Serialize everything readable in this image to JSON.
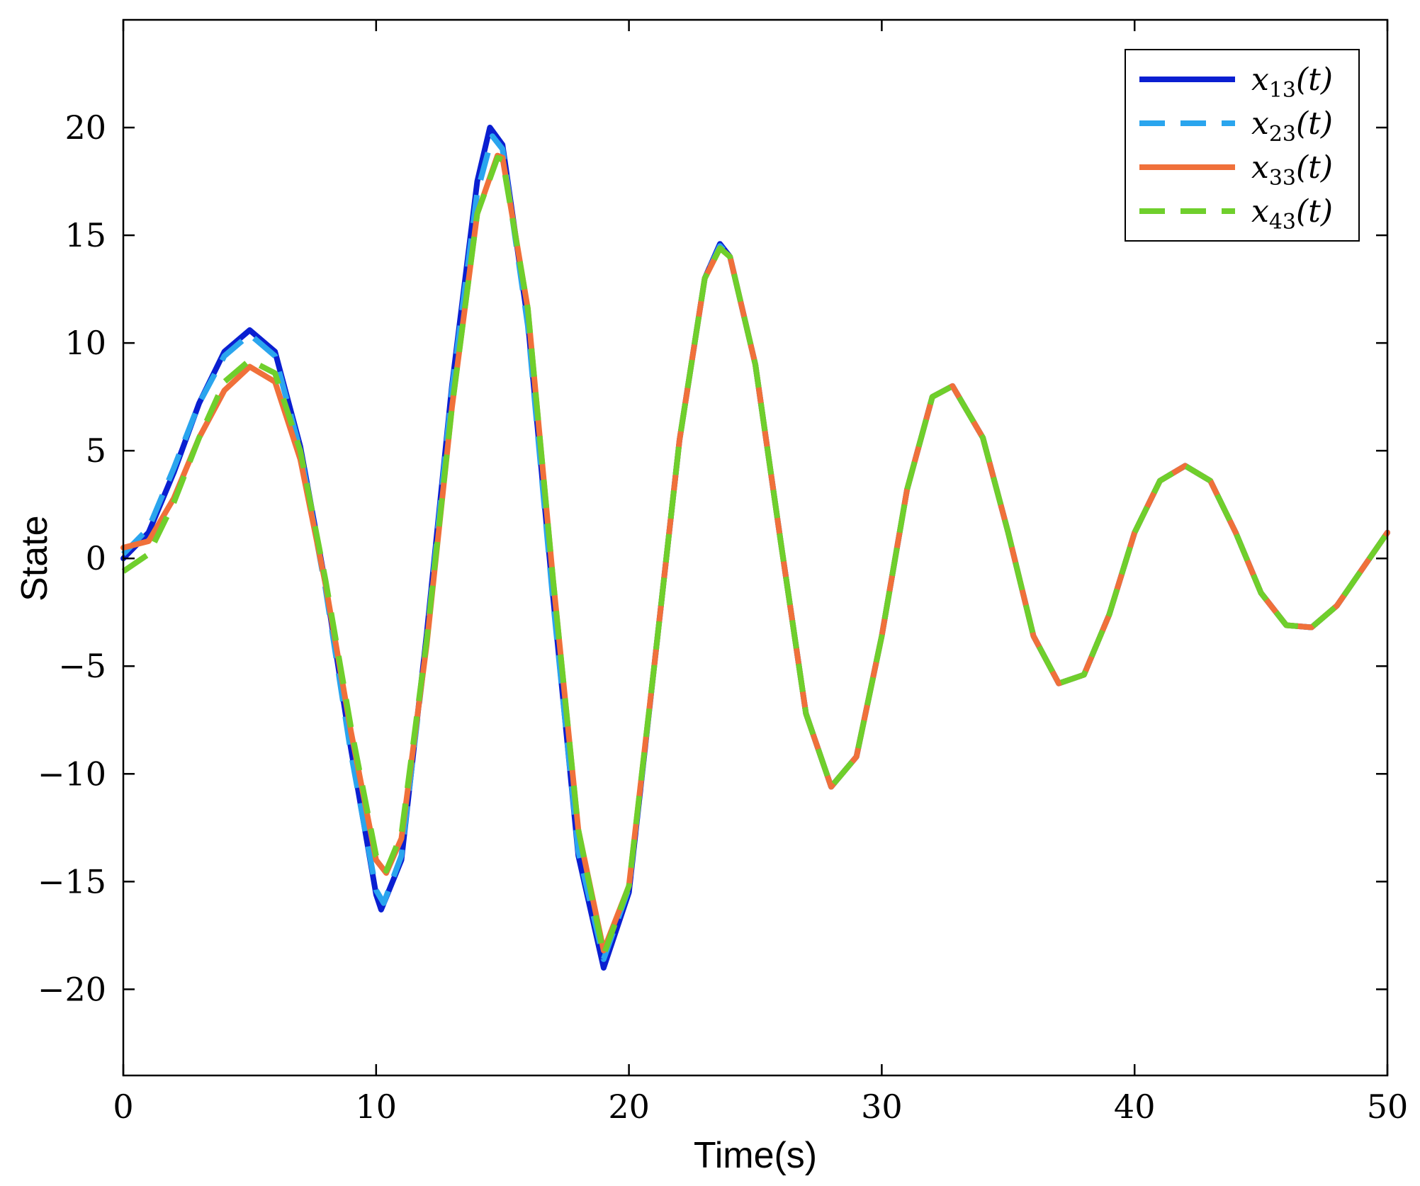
{
  "chart_data": {
    "type": "line",
    "title": "",
    "xlabel": "Time(s)",
    "ylabel": "State",
    "xlim": [
      0,
      50
    ],
    "ylim": [
      -24,
      25
    ],
    "x_ticks": [
      0,
      10,
      20,
      30,
      40,
      50
    ],
    "y_ticks": [
      -20,
      -15,
      -10,
      -5,
      0,
      5,
      10,
      15,
      20
    ],
    "grid": false,
    "legend_position": "top-right",
    "colors": {
      "x13": "#0a1fd1",
      "x23": "#2aa5ee",
      "x33": "#f0703a",
      "x43": "#6fcf2c",
      "axis": "#000000"
    },
    "series": [
      {
        "name": "x13(t)",
        "label_base": "x",
        "label_sub": "13",
        "label_tail": "(t)",
        "style": "solid",
        "color": "#0a1fd1",
        "points": [
          [
            0,
            0.0
          ],
          [
            1,
            1.2
          ],
          [
            2,
            4.0
          ],
          [
            3,
            7.2
          ],
          [
            4,
            9.6
          ],
          [
            5,
            10.6
          ],
          [
            6,
            9.6
          ],
          [
            7,
            5.2
          ],
          [
            8,
            -1.2
          ],
          [
            9,
            -8.8
          ],
          [
            10,
            -15.6
          ],
          [
            10.2,
            -16.3
          ],
          [
            11,
            -14.0
          ],
          [
            12,
            -3.5
          ],
          [
            13,
            8.0
          ],
          [
            14,
            17.5
          ],
          [
            14.5,
            20.0
          ],
          [
            15,
            19.2
          ],
          [
            16,
            11.0
          ],
          [
            17,
            -1.8
          ],
          [
            18,
            -13.8
          ],
          [
            19,
            -19.0
          ],
          [
            20,
            -15.5
          ],
          [
            21,
            -5.0
          ],
          [
            22,
            5.5
          ],
          [
            23,
            13.0
          ],
          [
            23.6,
            14.6
          ],
          [
            24,
            14.0
          ],
          [
            25,
            9.0
          ],
          [
            26,
            0.8
          ],
          [
            27,
            -7.2
          ],
          [
            28,
            -10.6
          ],
          [
            29,
            -9.2
          ],
          [
            30,
            -3.6
          ],
          [
            31,
            3.2
          ],
          [
            32,
            7.5
          ],
          [
            32.8,
            8.0
          ],
          [
            34,
            5.6
          ],
          [
            35,
            1.2
          ],
          [
            36,
            -3.6
          ],
          [
            37,
            -5.8
          ],
          [
            38,
            -5.4
          ],
          [
            39,
            -2.6
          ],
          [
            40,
            1.2
          ],
          [
            41,
            3.6
          ],
          [
            42,
            4.3
          ],
          [
            43,
            3.6
          ],
          [
            44,
            1.2
          ],
          [
            45,
            -1.6
          ],
          [
            46,
            -3.1
          ],
          [
            47,
            -3.2
          ],
          [
            48,
            -2.2
          ],
          [
            49,
            -0.5
          ],
          [
            50,
            1.2
          ]
        ]
      },
      {
        "name": "x23(t)",
        "label_base": "x",
        "label_sub": "23",
        "label_tail": "(t)",
        "style": "dashed",
        "color": "#2aa5ee",
        "points": [
          [
            0,
            0.2
          ],
          [
            1,
            1.4
          ],
          [
            2,
            4.2
          ],
          [
            3,
            7.2
          ],
          [
            4,
            9.4
          ],
          [
            5,
            10.4
          ],
          [
            6,
            9.4
          ],
          [
            7,
            5.0
          ],
          [
            8,
            -1.4
          ],
          [
            9,
            -9.0
          ],
          [
            10,
            -15.4
          ],
          [
            10.3,
            -16.0
          ],
          [
            11,
            -13.8
          ],
          [
            12,
            -3.8
          ],
          [
            13,
            7.8
          ],
          [
            14,
            17.0
          ],
          [
            14.6,
            19.6
          ],
          [
            15,
            19.0
          ],
          [
            16,
            10.8
          ],
          [
            17,
            -2.0
          ],
          [
            18,
            -13.6
          ],
          [
            19,
            -18.6
          ],
          [
            20,
            -15.3
          ],
          [
            21,
            -5.0
          ],
          [
            22,
            5.5
          ],
          [
            23,
            13.0
          ],
          [
            23.6,
            14.5
          ],
          [
            24,
            14.0
          ],
          [
            25,
            9.0
          ],
          [
            26,
            0.8
          ],
          [
            27,
            -7.2
          ],
          [
            28,
            -10.6
          ],
          [
            29,
            -9.2
          ],
          [
            30,
            -3.6
          ],
          [
            31,
            3.2
          ],
          [
            32,
            7.5
          ],
          [
            32.8,
            8.0
          ],
          [
            34,
            5.6
          ],
          [
            35,
            1.2
          ],
          [
            36,
            -3.6
          ],
          [
            37,
            -5.8
          ],
          [
            38,
            -5.4
          ],
          [
            39,
            -2.6
          ],
          [
            40,
            1.2
          ],
          [
            41,
            3.6
          ],
          [
            42,
            4.3
          ],
          [
            43,
            3.6
          ],
          [
            44,
            1.2
          ],
          [
            45,
            -1.6
          ],
          [
            46,
            -3.1
          ],
          [
            47,
            -3.2
          ],
          [
            48,
            -2.2
          ],
          [
            49,
            -0.5
          ],
          [
            50,
            1.2
          ]
        ]
      },
      {
        "name": "x33(t)",
        "label_base": "x",
        "label_sub": "33",
        "label_tail": "(t)",
        "style": "solid",
        "color": "#f0703a",
        "points": [
          [
            0,
            0.5
          ],
          [
            1,
            0.8
          ],
          [
            2,
            2.8
          ],
          [
            3,
            5.6
          ],
          [
            4,
            7.8
          ],
          [
            5,
            8.9
          ],
          [
            6,
            8.2
          ],
          [
            7,
            4.6
          ],
          [
            8,
            -1.2
          ],
          [
            9,
            -8.0
          ],
          [
            10,
            -14.0
          ],
          [
            10.4,
            -14.6
          ],
          [
            11,
            -13.0
          ],
          [
            12,
            -4.0
          ],
          [
            13,
            7.0
          ],
          [
            14,
            16.0
          ],
          [
            14.8,
            18.7
          ],
          [
            15,
            18.6
          ],
          [
            16,
            11.6
          ],
          [
            17,
            -1.0
          ],
          [
            18,
            -12.6
          ],
          [
            19,
            -18.2
          ],
          [
            20,
            -15.2
          ],
          [
            21,
            -5.0
          ],
          [
            22,
            5.5
          ],
          [
            23,
            13.0
          ],
          [
            23.6,
            14.4
          ],
          [
            24,
            14.0
          ],
          [
            25,
            9.0
          ],
          [
            26,
            0.8
          ],
          [
            27,
            -7.2
          ],
          [
            28,
            -10.6
          ],
          [
            29,
            -9.2
          ],
          [
            30,
            -3.6
          ],
          [
            31,
            3.2
          ],
          [
            32,
            7.5
          ],
          [
            32.8,
            8.0
          ],
          [
            34,
            5.6
          ],
          [
            35,
            1.2
          ],
          [
            36,
            -3.6
          ],
          [
            37,
            -5.8
          ],
          [
            38,
            -5.4
          ],
          [
            39,
            -2.6
          ],
          [
            40,
            1.2
          ],
          [
            41,
            3.6
          ],
          [
            42,
            4.3
          ],
          [
            43,
            3.6
          ],
          [
            44,
            1.2
          ],
          [
            45,
            -1.6
          ],
          [
            46,
            -3.1
          ],
          [
            47,
            -3.2
          ],
          [
            48,
            -2.2
          ],
          [
            49,
            -0.5
          ],
          [
            50,
            1.2
          ]
        ]
      },
      {
        "name": "x43(t)",
        "label_base": "x",
        "label_sub": "43",
        "label_tail": "(t)",
        "style": "dashed",
        "color": "#6fcf2c",
        "points": [
          [
            0,
            -0.6
          ],
          [
            1,
            0.2
          ],
          [
            2,
            2.6
          ],
          [
            3,
            5.6
          ],
          [
            4,
            8.2
          ],
          [
            5,
            9.2
          ],
          [
            6,
            8.6
          ],
          [
            7,
            5.0
          ],
          [
            8,
            -1.0
          ],
          [
            9,
            -7.8
          ],
          [
            10,
            -13.8
          ],
          [
            10.4,
            -14.5
          ],
          [
            11,
            -12.8
          ],
          [
            12,
            -3.8
          ],
          [
            13,
            7.0
          ],
          [
            14,
            16.0
          ],
          [
            14.8,
            18.6
          ],
          [
            15,
            18.5
          ],
          [
            16,
            11.6
          ],
          [
            17,
            -1.0
          ],
          [
            18,
            -12.6
          ],
          [
            19,
            -18.4
          ],
          [
            20,
            -15.2
          ],
          [
            21,
            -5.0
          ],
          [
            22,
            5.5
          ],
          [
            23,
            13.0
          ],
          [
            23.6,
            14.4
          ],
          [
            24,
            14.0
          ],
          [
            25,
            9.0
          ],
          [
            26,
            0.8
          ],
          [
            27,
            -7.2
          ],
          [
            28,
            -10.6
          ],
          [
            29,
            -9.2
          ],
          [
            30,
            -3.6
          ],
          [
            31,
            3.2
          ],
          [
            32,
            7.5
          ],
          [
            32.8,
            8.0
          ],
          [
            34,
            5.6
          ],
          [
            35,
            1.2
          ],
          [
            36,
            -3.6
          ],
          [
            37,
            -5.8
          ],
          [
            38,
            -5.4
          ],
          [
            39,
            -2.6
          ],
          [
            40,
            1.2
          ],
          [
            41,
            3.6
          ],
          [
            42,
            4.3
          ],
          [
            43,
            3.6
          ],
          [
            44,
            1.2
          ],
          [
            45,
            -1.6
          ],
          [
            46,
            -3.1
          ],
          [
            47,
            -3.2
          ],
          [
            48,
            -2.2
          ],
          [
            49,
            -0.5
          ],
          [
            50,
            1.2
          ]
        ]
      }
    ]
  }
}
